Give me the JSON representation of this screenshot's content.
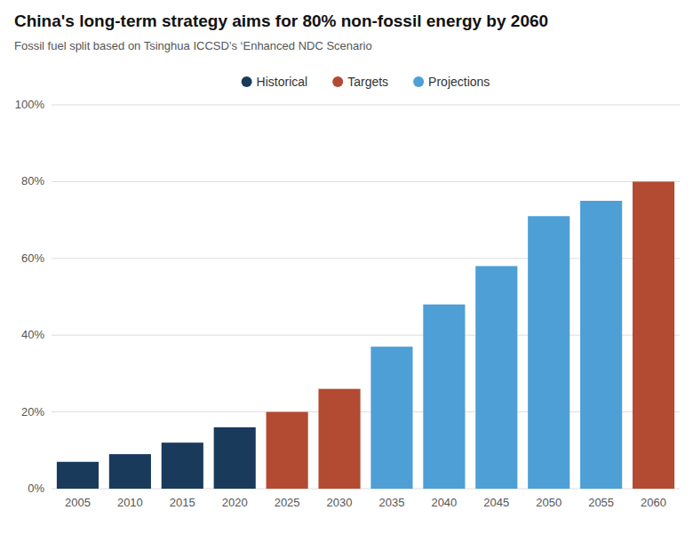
{
  "chart_data": {
    "type": "bar",
    "title": "China's long-term strategy aims for 80% non-fossil energy by 2060",
    "subtitle": "Fossil fuel split based on Tsinghua ICCSD’s ‘Enhanced NDC Scenario",
    "categories": [
      "2005",
      "2010",
      "2015",
      "2020",
      "2025",
      "2030",
      "2035",
      "2040",
      "2045",
      "2050",
      "2055",
      "2060"
    ],
    "series": [
      {
        "name": "Historical",
        "color": "#1a3a5c",
        "values": [
          7,
          9,
          12,
          16,
          null,
          null,
          null,
          null,
          null,
          null,
          null,
          null
        ]
      },
      {
        "name": "Targets",
        "color": "#b34a32",
        "values": [
          null,
          null,
          null,
          null,
          20,
          26,
          null,
          null,
          null,
          null,
          null,
          80
        ]
      },
      {
        "name": "Projections",
        "color": "#4d9fd6",
        "values": [
          null,
          null,
          null,
          null,
          null,
          null,
          37,
          48,
          58,
          71,
          75,
          null
        ]
      }
    ],
    "ylim": [
      0,
      100
    ],
    "yticks": [
      {
        "value": 0,
        "label": "0%"
      },
      {
        "value": 20,
        "label": "20%"
      },
      {
        "value": 40,
        "label": "40%"
      },
      {
        "value": 60,
        "label": "60%"
      },
      {
        "value": 80,
        "label": "80%"
      },
      {
        "value": 100,
        "label": "100%"
      }
    ],
    "grid": true,
    "legend": "top"
  }
}
